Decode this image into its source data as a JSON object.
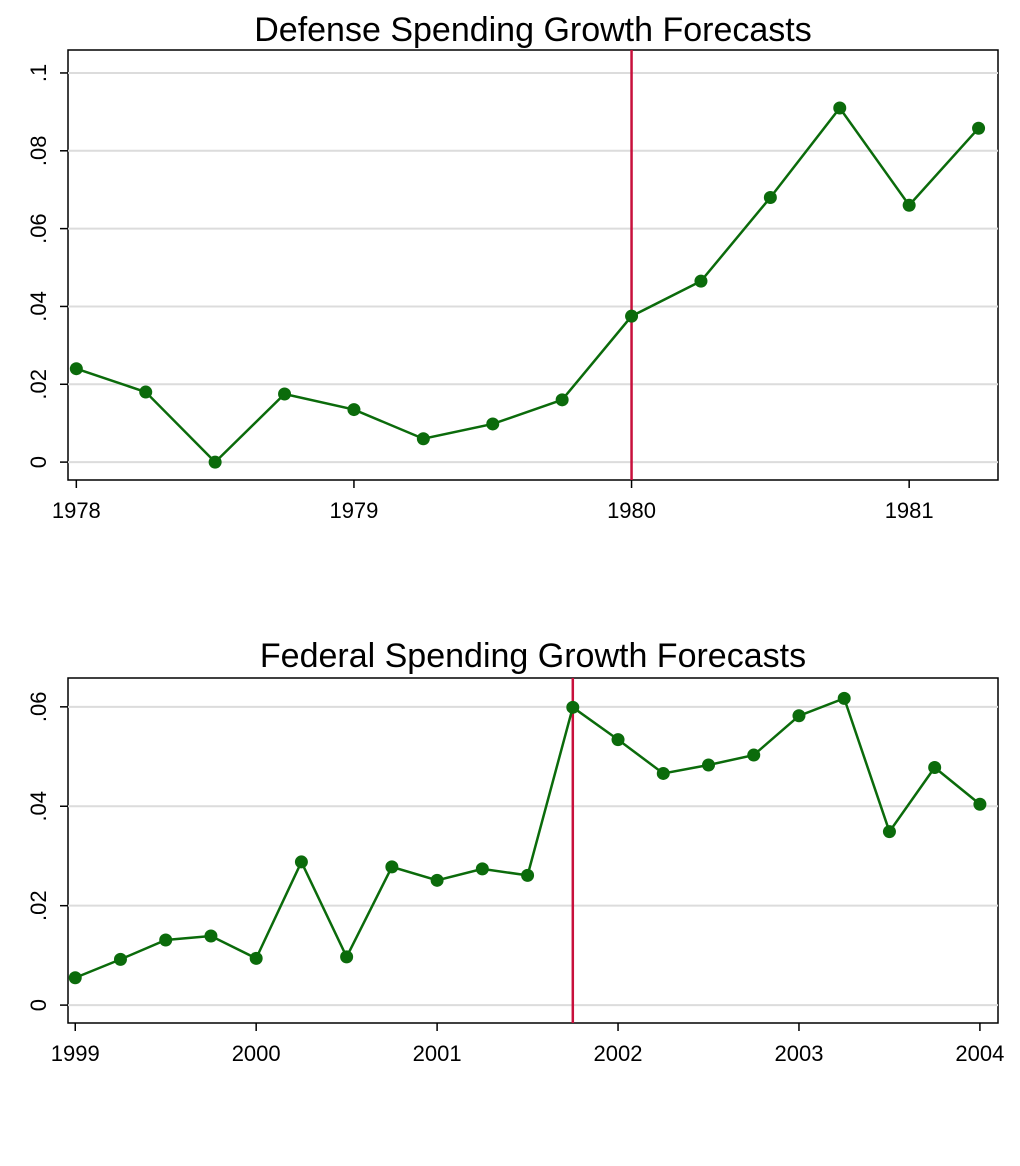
{
  "chart_data": [
    {
      "type": "line",
      "title": "Defense Spending Growth Forecasts",
      "x": [
        1978,
        1978.25,
        1978.5,
        1978.75,
        1979,
        1979.25,
        1979.5,
        1979.75,
        1980,
        1980.25,
        1980.5,
        1980.75,
        1981,
        1981.25
      ],
      "values": [
        0.024,
        0.018,
        0.0,
        0.0175,
        0.0135,
        0.006,
        0.0098,
        0.016,
        0.0375,
        0.0465,
        0.068,
        0.091,
        0.066,
        0.0858
      ],
      "color": "#0b6b0b",
      "xlim": [
        1977.97,
        1981.32
      ],
      "xticks": [
        1978,
        1979,
        1980,
        1981
      ],
      "ylim": [
        -0.0046,
        0.1059
      ],
      "yticks": [
        0,
        {
          "value": 0.02,
          "label": ".02"
        },
        {
          "value": 0.04,
          "label": ".04"
        },
        {
          "value": 0.06,
          "label": ".06"
        },
        {
          "value": 0.08,
          "label": ".08"
        },
        {
          "value": 0.1,
          "label": ".1"
        }
      ],
      "grid": true,
      "vline": 1980,
      "vline_color": "#c8103c"
    },
    {
      "type": "line",
      "title": "Federal Spending Growth Forecasts",
      "x": [
        1999,
        1999.25,
        1999.5,
        1999.75,
        2000,
        2000.25,
        2000.5,
        2000.75,
        2001,
        2001.25,
        2001.5,
        2001.75,
        2002,
        2002.25,
        2002.5,
        2002.75,
        2003,
        2003.25,
        2003.5,
        2003.75,
        2004
      ],
      "values": [
        0.0055,
        0.0092,
        0.0131,
        0.0139,
        0.0094,
        0.0288,
        0.0097,
        0.0278,
        0.0251,
        0.0274,
        0.0261,
        0.0599,
        0.0534,
        0.0466,
        0.0483,
        0.0503,
        0.0582,
        0.0617,
        0.0349,
        0.0478,
        0.0404
      ],
      "color": "#0b6b0b",
      "xlim": [
        1998.96,
        2004.1
      ],
      "xticks": [
        1999,
        2000,
        2001,
        2002,
        2003,
        2004
      ],
      "ylim": [
        -0.0036,
        0.0658
      ],
      "yticks": [
        0,
        {
          "value": 0.02,
          "label": ".02"
        },
        {
          "value": 0.04,
          "label": ".04"
        },
        {
          "value": 0.06,
          "label": ".06"
        }
      ],
      "grid": true,
      "vline": 2001.75,
      "vline_color": "#c8103c"
    }
  ]
}
